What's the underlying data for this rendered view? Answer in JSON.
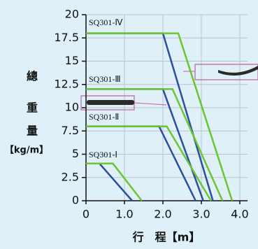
{
  "chart_data": {
    "type": "line",
    "y_label": [
      "總",
      "重",
      "量",
      "【kg/m】"
    ],
    "x_label": "行　程【m】",
    "annotations": [
      "SQ301-Ⅳ",
      "SQ301-Ⅲ",
      "SQ301-Ⅱ",
      "SQ301-Ⅰ"
    ],
    "xlim": [
      0,
      4.2
    ],
    "ylim": [
      0,
      20
    ],
    "xticks": [
      0,
      {
        "value": 1,
        "label": "1.0"
      },
      {
        "value": 2,
        "label": "2.0"
      },
      {
        "value": 3,
        "label": "3.0"
      },
      {
        "value": 4,
        "label": "4.0"
      }
    ],
    "yticks": [
      0,
      2.5,
      5,
      7.5,
      10,
      12.5,
      15,
      17.5,
      20
    ],
    "grid": true,
    "series": [
      {
        "color": "#2b4ea0",
        "x": [
          0,
          2.0,
          3.3
        ],
        "values": [
          18,
          18,
          0
        ]
      },
      {
        "color": "#6cc531",
        "x": [
          0,
          2.4,
          3.8
        ],
        "values": [
          18,
          18,
          0
        ]
      },
      {
        "color": "#2b4ea0",
        "x": [
          0,
          2.0,
          3.05
        ],
        "values": [
          12,
          12,
          0
        ]
      },
      {
        "color": "#6cc531",
        "x": [
          0,
          2.25,
          3.55
        ],
        "values": [
          12,
          12,
          0
        ]
      },
      {
        "color": "#2b4ea0",
        "x": [
          0,
          1.9,
          2.85
        ],
        "values": [
          8,
          8,
          0
        ]
      },
      {
        "color": "#6cc531",
        "x": [
          0,
          2.1,
          3.25
        ],
        "values": [
          8,
          8,
          0
        ]
      },
      {
        "color": "#2b4ea0",
        "x": [
          0,
          0.35,
          1.2
        ],
        "values": [
          4,
          4,
          0
        ]
      },
      {
        "color": "#6cc531",
        "x": [
          0,
          0.7,
          1.45
        ],
        "values": [
          4,
          4,
          0
        ]
      }
    ]
  }
}
